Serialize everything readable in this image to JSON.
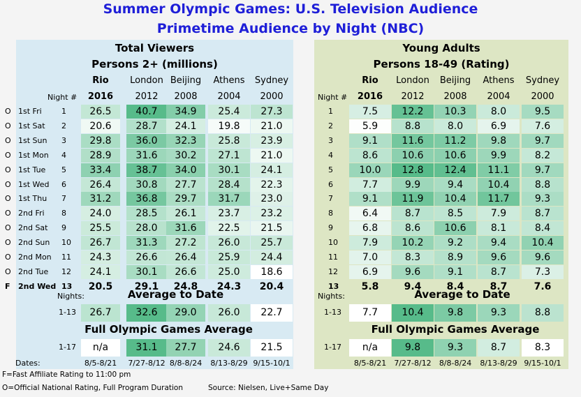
{
  "title": "Summer Olympic Games: U.S. Television Audience",
  "subtitle": "Primetime Audience by Night (NBC)",
  "chart_data": [
    {
      "type": "table",
      "title": "Total Viewers",
      "subtitle": "Persons 2+ (millions)",
      "columns": [
        {
          "city": "Rio",
          "year": "2016"
        },
        {
          "city": "London",
          "year": "2012"
        },
        {
          "city": "Beijing",
          "year": "2008"
        },
        {
          "city": "Athens",
          "year": "2004"
        },
        {
          "city": "Sydney",
          "year": "2000"
        }
      ],
      "night_header": "Night #",
      "rows": [
        {
          "flag": "O",
          "day": "1st Fri",
          "night": "1",
          "values": [
            "26.5",
            "40.7",
            "34.9",
            "25.4",
            "27.3"
          ]
        },
        {
          "flag": "O",
          "day": "1st Sat",
          "night": "2",
          "values": [
            "20.6",
            "28.7",
            "24.1",
            "19.8",
            "21.0"
          ]
        },
        {
          "flag": "O",
          "day": "1st Sun",
          "night": "3",
          "values": [
            "29.8",
            "36.0",
            "32.3",
            "25.8",
            "23.9"
          ]
        },
        {
          "flag": "O",
          "day": "1st Mon",
          "night": "4",
          "values": [
            "28.9",
            "31.6",
            "30.2",
            "27.1",
            "21.0"
          ]
        },
        {
          "flag": "O",
          "day": "1st Tue",
          "night": "5",
          "values": [
            "33.4",
            "38.7",
            "34.0",
            "30.1",
            "24.1"
          ]
        },
        {
          "flag": "O",
          "day": "1st Wed",
          "night": "6",
          "values": [
            "26.4",
            "30.8",
            "27.7",
            "28.4",
            "22.3"
          ]
        },
        {
          "flag": "O",
          "day": "1st Thu",
          "night": "7",
          "values": [
            "31.2",
            "36.8",
            "29.7",
            "31.7",
            "23.0"
          ]
        },
        {
          "flag": "O",
          "day": "2nd Fri",
          "night": "8",
          "values": [
            "24.0",
            "28.5",
            "26.1",
            "23.7",
            "23.2"
          ]
        },
        {
          "flag": "O",
          "day": "2nd Sat",
          "night": "9",
          "values": [
            "25.5",
            "28.0",
            "31.6",
            "22.5",
            "21.5"
          ]
        },
        {
          "flag": "O",
          "day": "2nd Sun",
          "night": "10",
          "values": [
            "26.7",
            "31.3",
            "27.2",
            "26.0",
            "25.7"
          ]
        },
        {
          "flag": "O",
          "day": "2nd Mon",
          "night": "11",
          "values": [
            "24.3",
            "26.6",
            "26.4",
            "25.9",
            "24.4"
          ]
        },
        {
          "flag": "O",
          "day": "2nd Tue",
          "night": "12",
          "values": [
            "24.1",
            "30.1",
            "26.6",
            "25.0",
            "18.6"
          ]
        },
        {
          "flag": "F",
          "day": "2nd Wed",
          "night": "13",
          "values": [
            "20.5",
            "29.1",
            "24.8",
            "24.3",
            "20.4"
          ],
          "bold": true
        }
      ],
      "avg_to_date": {
        "title": "Average to Date",
        "nights_label": "Nights:",
        "range": "1-13",
        "values": [
          "26.7",
          "32.6",
          "29.0",
          "26.0",
          "22.7"
        ]
      },
      "full_avg": {
        "title": "Full Olympic Games Average",
        "range": "1-17",
        "values": [
          "n/a",
          "31.1",
          "27.7",
          "24.6",
          "21.5"
        ]
      },
      "dates_label": "Dates:",
      "dates": [
        "8/5-8/21",
        "7/27-8/12",
        "8/8-8/24",
        "8/13-8/29",
        "9/15-10/1"
      ]
    },
    {
      "type": "table",
      "title": "Young Adults",
      "subtitle": "Persons 18-49 (Rating)",
      "columns": [
        {
          "city": "Rio",
          "year": "2016"
        },
        {
          "city": "London",
          "year": "2012"
        },
        {
          "city": "Beijing",
          "year": "2008"
        },
        {
          "city": "Athens",
          "year": "2004"
        },
        {
          "city": "Sydney",
          "year": "2000"
        }
      ],
      "night_header": "Night #",
      "rows": [
        {
          "night": "1",
          "values": [
            "7.5",
            "12.2",
            "10.3",
            "8.0",
            "9.5"
          ]
        },
        {
          "night": "2",
          "values": [
            "5.9",
            "8.8",
            "8.0",
            "6.9",
            "7.6"
          ]
        },
        {
          "night": "3",
          "values": [
            "9.1",
            "11.6",
            "11.2",
            "9.8",
            "9.7"
          ]
        },
        {
          "night": "4",
          "values": [
            "8.6",
            "10.6",
            "10.6",
            "9.9",
            "8.2"
          ]
        },
        {
          "night": "5",
          "values": [
            "10.0",
            "12.8",
            "12.4",
            "11.1",
            "9.7"
          ]
        },
        {
          "night": "6",
          "values": [
            "7.7",
            "9.9",
            "9.4",
            "10.4",
            "8.8"
          ]
        },
        {
          "night": "7",
          "values": [
            "9.1",
            "11.9",
            "10.4",
            "11.7",
            "9.3"
          ]
        },
        {
          "night": "8",
          "values": [
            "6.4",
            "8.7",
            "8.5",
            "7.9",
            "8.7"
          ]
        },
        {
          "night": "9",
          "values": [
            "6.8",
            "8.6",
            "10.6",
            "8.1",
            "8.4"
          ]
        },
        {
          "night": "10",
          "values": [
            "7.9",
            "10.2",
            "9.2",
            "9.4",
            "10.4"
          ]
        },
        {
          "night": "11",
          "values": [
            "7.0",
            "8.3",
            "8.9",
            "9.6",
            "9.6"
          ]
        },
        {
          "night": "12",
          "values": [
            "6.9",
            "9.6",
            "9.1",
            "8.7",
            "7.3"
          ]
        },
        {
          "night": "13",
          "values": [
            "5.8",
            "9.4",
            "8.4",
            "8.7",
            "7.6"
          ],
          "bold": true
        }
      ],
      "avg_to_date": {
        "title": "Average to Date",
        "nights_label": "Nights:",
        "range": "1-13",
        "values": [
          "7.7",
          "10.4",
          "9.8",
          "9.3",
          "8.8"
        ]
      },
      "full_avg": {
        "title": "Full Olympic Games Average",
        "range": "1-17",
        "values": [
          "n/a",
          "9.8",
          "9.3",
          "8.7",
          "8.3"
        ]
      },
      "dates": [
        "8/5-8/21",
        "7/27-8/12",
        "8/8-8/24",
        "8/13-8/29",
        "9/15-10/1"
      ]
    }
  ],
  "footnotes": {
    "f_note": "F=Fast Affiliate Rating to 11:00 pm",
    "o_note": "O=Official National Rating, Full Program Duration",
    "source": "Source: Nielsen, Live+Same Day"
  },
  "colors": {
    "title": "#1f1fd8",
    "left_panel": "#d8eaf3",
    "right_panel": "#dde6c4",
    "heat_low": "#ffffff",
    "heat_high": "#57bb8a"
  }
}
